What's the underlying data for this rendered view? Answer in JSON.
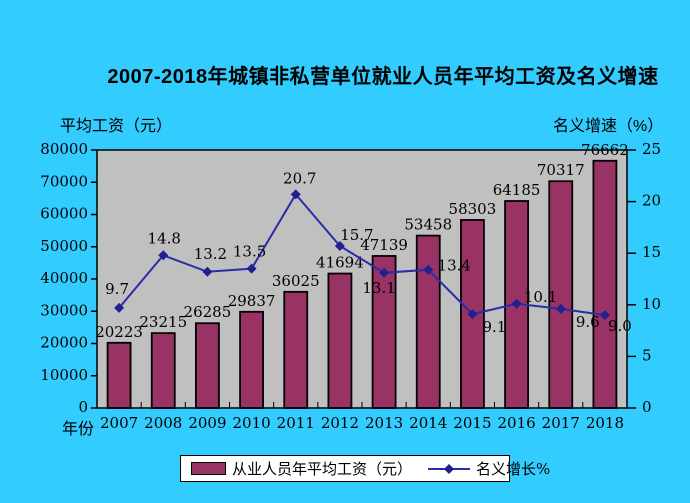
{
  "chart_data": {
    "type": "bar",
    "title": "2007-2018年城镇非私营单位就业人员年平均工资及名义增速",
    "x_axis_title": "年份",
    "categories": [
      "2007",
      "2008",
      "2009",
      "2010",
      "2011",
      "2012",
      "2013",
      "2014",
      "2015",
      "2016",
      "2017",
      "2018"
    ],
    "series": [
      {
        "name": "从业人员年平均工资（元）",
        "type": "bar",
        "axis": "left",
        "color": "#993366",
        "values": [
          20223,
          23215,
          26285,
          29837,
          36025,
          41694,
          47139,
          53458,
          58303,
          64185,
          70317,
          76662
        ]
      },
      {
        "name": "名义增长%",
        "type": "line",
        "axis": "right",
        "color": "#2B2BA8",
        "marker_color": "#20208F",
        "marker": "diamond",
        "values": [
          9.7,
          14.8,
          13.2,
          13.5,
          20.7,
          15.7,
          13.1,
          13.4,
          9.1,
          10.1,
          9.6,
          9.0
        ]
      }
    ],
    "left_axis": {
      "title": "平均工资（元）",
      "min": 0,
      "max": 80000,
      "step": 10000,
      "ticks": [
        "0",
        "10000",
        "20000",
        "30000",
        "40000",
        "50000",
        "60000",
        "70000",
        "80000"
      ]
    },
    "right_axis": {
      "title": "名义增速（%）",
      "min": 0,
      "max": 25,
      "step": 5,
      "ticks": [
        "0",
        "5",
        "10",
        "15",
        "20",
        "25"
      ]
    },
    "grid": false,
    "legend_position": "bottom",
    "data_labels": true,
    "colors": {
      "page_bg": "#33CCFF",
      "plot_bg": "#C0C0C0",
      "plot_border": "#000000",
      "text": "#000000",
      "legend_bg": "#FFFFFF"
    }
  }
}
